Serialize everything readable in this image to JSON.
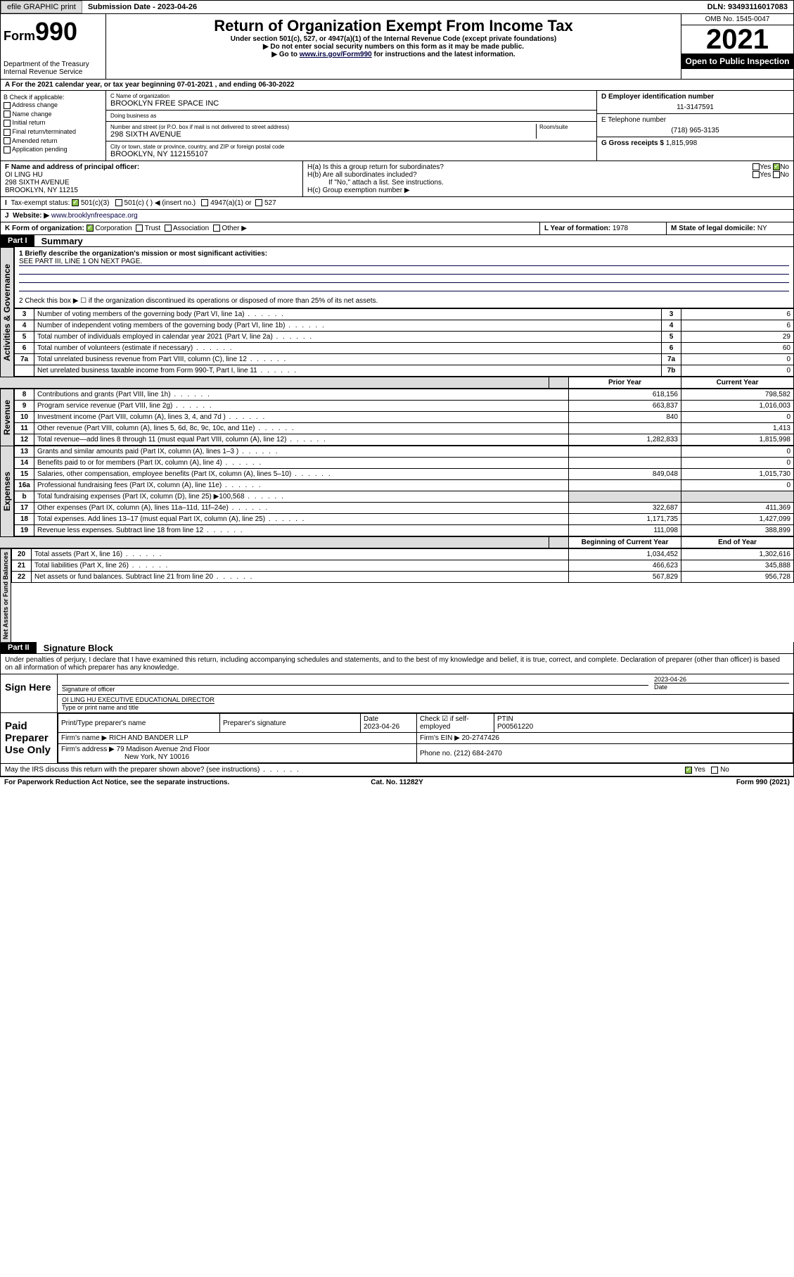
{
  "topbar": {
    "efile": "efile GRAPHIC print",
    "submission_label": "Submission Date - 2023-04-26",
    "dln": "DLN: 93493116017083"
  },
  "header": {
    "form_prefix": "Form",
    "form_no": "990",
    "dept": "Department of the Treasury",
    "irs": "Internal Revenue Service",
    "title": "Return of Organization Exempt From Income Tax",
    "sub1": "Under section 501(c), 527, or 4947(a)(1) of the Internal Revenue Code (except private foundations)",
    "sub2": "▶ Do not enter social security numbers on this form as it may be made public.",
    "sub3_pre": "▶ Go to ",
    "sub3_link": "www.irs.gov/Form990",
    "sub3_post": " for instructions and the latest information.",
    "omb": "OMB No. 1545-0047",
    "year": "2021",
    "open": "Open to Public Inspection"
  },
  "line_a": "A For the 2021 calendar year, or tax year beginning 07-01-2021  , and ending 06-30-2022",
  "col_b": {
    "hdr": "B Check if applicable:",
    "items": [
      "Address change",
      "Name change",
      "Initial return",
      "Final return/terminated",
      "Amended return",
      "Application pending"
    ]
  },
  "col_c": {
    "name_lbl": "C Name of organization",
    "name": "BROOKLYN FREE SPACE INC",
    "dba_lbl": "Doing business as",
    "dba": "",
    "addr_lbl": "Number and street (or P.O. box if mail is not delivered to street address)",
    "room_lbl": "Room/suite",
    "addr": "298 SIXTH AVENUE",
    "city_lbl": "City or town, state or province, country, and ZIP or foreign postal code",
    "city": "BROOKLYN, NY  112155107"
  },
  "col_de": {
    "d_lbl": "D Employer identification number",
    "d": "11-3147591",
    "e_lbl": "E Telephone number",
    "e": "(718) 965-3135",
    "g_lbl": "G Gross receipts $",
    "g": "1,815,998"
  },
  "row_f": {
    "f_lbl": "F Name and address of principal officer:",
    "f_name": "OI LING HU",
    "f_addr1": "298 SIXTH AVENUE",
    "f_addr2": "BROOKLYN, NY  11215",
    "ha": "H(a)  Is this a group return for subordinates?",
    "hb": "H(b)  Are all subordinates included?",
    "hb_note": "If \"No,\" attach a list. See instructions.",
    "hc": "H(c)  Group exemption number ▶",
    "yes": "Yes",
    "no": "No"
  },
  "row_i": {
    "lbl": "Tax-exempt status:",
    "o1": "501(c)(3)",
    "o2": "501(c) (  ) ◀ (insert no.)",
    "o3": "4947(a)(1) or",
    "o4": "527"
  },
  "row_j": {
    "lbl": "Website: ▶",
    "val": "www.brooklynfreespace.org"
  },
  "row_k": {
    "lbl": "K Form of organization:",
    "o1": "Corporation",
    "o2": "Trust",
    "o3": "Association",
    "o4": "Other ▶",
    "l_lbl": "L Year of formation:",
    "l": "1978",
    "m_lbl": "M State of legal domicile:",
    "m": "NY"
  },
  "part1": {
    "pt": "Part I",
    "name": "Summary"
  },
  "gov": {
    "side": "Activities & Governance",
    "l1a": "1  Briefly describe the organization's mission or most significant activities:",
    "l1b": "SEE PART III, LINE 1 ON NEXT PAGE.",
    "l2": "2   Check this box ▶ ☐  if the organization discontinued its operations or disposed of more than 25% of its net assets.",
    "rows": [
      {
        "n": "3",
        "t": "Number of voting members of the governing body (Part VI, line 1a)",
        "c": "3",
        "v": "6"
      },
      {
        "n": "4",
        "t": "Number of independent voting members of the governing body (Part VI, line 1b)",
        "c": "4",
        "v": "6"
      },
      {
        "n": "5",
        "t": "Total number of individuals employed in calendar year 2021 (Part V, line 2a)",
        "c": "5",
        "v": "29"
      },
      {
        "n": "6",
        "t": "Total number of volunteers (estimate if necessary)",
        "c": "6",
        "v": "60"
      },
      {
        "n": "7a",
        "t": "Total unrelated business revenue from Part VIII, column (C), line 12",
        "c": "7a",
        "v": "0"
      },
      {
        "n": "",
        "t": "Net unrelated business taxable income from Form 990-T, Part I, line 11",
        "c": "7b",
        "v": "0"
      }
    ]
  },
  "hdr2": {
    "blank": "b",
    "py": "Prior Year",
    "cy": "Current Year"
  },
  "rev": {
    "side": "Revenue",
    "rows": [
      {
        "n": "8",
        "t": "Contributions and grants (Part VIII, line 1h)",
        "p": "618,156",
        "c": "798,582"
      },
      {
        "n": "9",
        "t": "Program service revenue (Part VIII, line 2g)",
        "p": "663,837",
        "c": "1,016,003"
      },
      {
        "n": "10",
        "t": "Investment income (Part VIII, column (A), lines 3, 4, and 7d )",
        "p": "840",
        "c": "0"
      },
      {
        "n": "11",
        "t": "Other revenue (Part VIII, column (A), lines 5, 6d, 8c, 9c, 10c, and 11e)",
        "p": "",
        "c": "1,413"
      },
      {
        "n": "12",
        "t": "Total revenue—add lines 8 through 11 (must equal Part VIII, column (A), line 12)",
        "p": "1,282,833",
        "c": "1,815,998"
      }
    ]
  },
  "exp": {
    "side": "Expenses",
    "rows": [
      {
        "n": "13",
        "t": "Grants and similar amounts paid (Part IX, column (A), lines 1–3 )",
        "p": "",
        "c": "0"
      },
      {
        "n": "14",
        "t": "Benefits paid to or for members (Part IX, column (A), line 4)",
        "p": "",
        "c": "0"
      },
      {
        "n": "15",
        "t": "Salaries, other compensation, employee benefits (Part IX, column (A), lines 5–10)",
        "p": "849,048",
        "c": "1,015,730"
      },
      {
        "n": "16a",
        "t": "Professional fundraising fees (Part IX, column (A), line 11e)",
        "p": "",
        "c": "0"
      },
      {
        "n": "b",
        "t": "Total fundraising expenses (Part IX, column (D), line 25) ▶100,568",
        "p": "shade",
        "c": "shade"
      },
      {
        "n": "17",
        "t": "Other expenses (Part IX, column (A), lines 11a–11d, 11f–24e)",
        "p": "322,687",
        "c": "411,369"
      },
      {
        "n": "18",
        "t": "Total expenses. Add lines 13–17 (must equal Part IX, column (A), line 25)",
        "p": "1,171,735",
        "c": "1,427,099"
      },
      {
        "n": "19",
        "t": "Revenue less expenses. Subtract line 18 from line 12",
        "p": "111,098",
        "c": "388,899"
      }
    ]
  },
  "hdr3": {
    "py": "Beginning of Current Year",
    "cy": "End of Year"
  },
  "net": {
    "side": "Net Assets or Fund Balances",
    "rows": [
      {
        "n": "20",
        "t": "Total assets (Part X, line 16)",
        "p": "1,034,452",
        "c": "1,302,616"
      },
      {
        "n": "21",
        "t": "Total liabilities (Part X, line 26)",
        "p": "466,623",
        "c": "345,888"
      },
      {
        "n": "22",
        "t": "Net assets or fund balances. Subtract line 21 from line 20",
        "p": "567,829",
        "c": "956,728"
      }
    ]
  },
  "part2": {
    "pt": "Part II",
    "name": "Signature Block"
  },
  "sig_decl": "Under penalties of perjury, I declare that I have examined this return, including accompanying schedules and statements, and to the best of my knowledge and belief, it is true, correct, and complete. Declaration of preparer (other than officer) is based on all information of which preparer has any knowledge.",
  "sign": {
    "here": "Sign Here",
    "sig_lbl": "Signature of officer",
    "date": "2023-04-26",
    "date_lbl": "Date",
    "name": "OI LING HU  EXECUTIVE EDUCATIONAL DIRECTOR",
    "name_lbl": "Type or print name and title"
  },
  "prep": {
    "side": "Paid Preparer Use Only",
    "h1": "Print/Type preparer's name",
    "h2": "Preparer's signature",
    "h3": "Date",
    "h3v": "2023-04-26",
    "h4": "Check ☑ if self-employed",
    "h5": "PTIN",
    "h5v": "P00561220",
    "firm_lbl": "Firm's name   ▶",
    "firm": "RICH AND BANDER LLP",
    "ein_lbl": "Firm's EIN ▶",
    "ein": "20-2747426",
    "addr_lbl": "Firm's address ▶",
    "addr1": "79 Madison Avenue 2nd Floor",
    "addr2": "New York, NY  10016",
    "ph_lbl": "Phone no.",
    "ph": "(212) 684-2470"
  },
  "may": "May the IRS discuss this return with the preparer shown above? (see instructions)",
  "footer": {
    "l": "For Paperwork Reduction Act Notice, see the separate instructions.",
    "c": "Cat. No. 11282Y",
    "r": "Form 990 (2021)"
  },
  "colors": {
    "check": "#8bc34a",
    "link": "#000088"
  }
}
